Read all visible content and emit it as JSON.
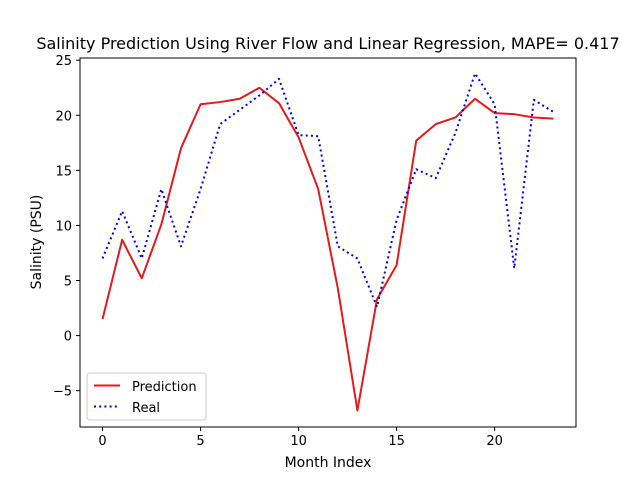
{
  "chart_data": {
    "type": "line",
    "title": "Salinity Prediction Using River Flow and Linear Regression, MAPE= 0.417",
    "xlabel": "Month Index",
    "ylabel": "Salinity (PSU)",
    "xlim": [
      -1.15,
      24.15
    ],
    "ylim": [
      -8.3,
      25.2
    ],
    "xticks": [
      0,
      5,
      10,
      15,
      20
    ],
    "yticks": [
      -5,
      0,
      5,
      10,
      15,
      20,
      25
    ],
    "xtick_labels": [
      "0",
      "5",
      "10",
      "15",
      "20"
    ],
    "ytick_labels": [
      "−5",
      "0",
      "5",
      "10",
      "15",
      "20",
      "25"
    ],
    "x": [
      0,
      1,
      2,
      3,
      4,
      5,
      6,
      7,
      8,
      9,
      10,
      11,
      12,
      13,
      14,
      15,
      16,
      17,
      18,
      19,
      20,
      21,
      22,
      23
    ],
    "series": [
      {
        "name": "Prediction",
        "color": "#e41a1c",
        "style": "solid",
        "values": [
          1.5,
          8.7,
          5.2,
          10.1,
          17.0,
          21.0,
          21.2,
          21.5,
          22.5,
          21.1,
          18.0,
          13.3,
          4.3,
          -6.8,
          3.3,
          6.4,
          17.7,
          19.2,
          19.8,
          21.5,
          20.2,
          20.1,
          19.8,
          19.7
        ]
      },
      {
        "name": "Real",
        "color": "#0000ee",
        "style": "dotted",
        "values": [
          7.0,
          11.3,
          7.0,
          13.3,
          8.1,
          13.3,
          19.2,
          20.5,
          21.8,
          23.3,
          18.2,
          18.1,
          8.1,
          7.0,
          2.6,
          10.5,
          15.1,
          14.3,
          18.4,
          23.8,
          21.0,
          6.1,
          21.4,
          20.3
        ]
      }
    ],
    "grid": false,
    "legend_position": "lower-left"
  }
}
